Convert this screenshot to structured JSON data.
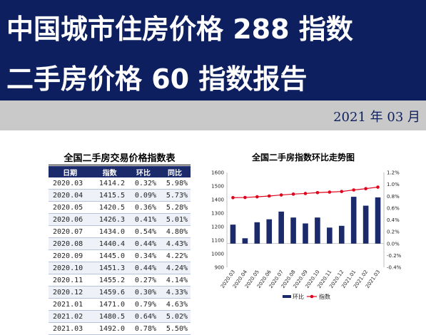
{
  "header": {
    "title_line1": "中国城市住房价格 288 指数",
    "title_line2": "二手房价格 60 指数报告",
    "date": "2021 年 03 月"
  },
  "table": {
    "title": "全国二手房交易价格指数表",
    "headers": [
      "日期",
      "指数",
      "环比",
      "同比"
    ],
    "rows": [
      [
        "2020.03",
        "1414.2",
        "0.32%",
        "5.98%"
      ],
      [
        "2020.04",
        "1415.5",
        "0.09%",
        "5.73%"
      ],
      [
        "2020.05",
        "1420.5",
        "0.36%",
        "5.28%"
      ],
      [
        "2020.06",
        "1426.3",
        "0.41%",
        "5.01%"
      ],
      [
        "2020.07",
        "1434.0",
        "0.54%",
        "4.80%"
      ],
      [
        "2020.08",
        "1440.4",
        "0.44%",
        "4.43%"
      ],
      [
        "2020.09",
        "1445.0",
        "0.34%",
        "4.22%"
      ],
      [
        "2020.10",
        "1451.3",
        "0.44%",
        "4.24%"
      ],
      [
        "2020.11",
        "1455.2",
        "0.27%",
        "4.14%"
      ],
      [
        "2020.12",
        "1459.6",
        "0.30%",
        "4.33%"
      ],
      [
        "2021.01",
        "1471.0",
        "0.79%",
        "4.63%"
      ],
      [
        "2021.02",
        "1480.5",
        "0.64%",
        "5.02%"
      ],
      [
        "2021.03",
        "1492.0",
        "0.78%",
        "5.50%"
      ]
    ]
  },
  "chart_data": {
    "type": "bar+line",
    "title": "全国二手房指数环比走势图",
    "categories": [
      "2020.03",
      "2020.04",
      "2020.05",
      "2020.06",
      "2020.07",
      "2020.08",
      "2020.09",
      "2020.10",
      "2020.11",
      "2020.12",
      "2021.01",
      "2021.02",
      "2021.03"
    ],
    "series": [
      {
        "name": "环比",
        "type": "bar",
        "axis": "right",
        "color": "#1b2a6b",
        "values": [
          0.32,
          0.09,
          0.36,
          0.41,
          0.54,
          0.44,
          0.34,
          0.44,
          0.27,
          0.3,
          0.79,
          0.64,
          0.78
        ]
      },
      {
        "name": "指数",
        "type": "line",
        "axis": "left",
        "color": "#e0001b",
        "values": [
          1414.2,
          1415.5,
          1420.5,
          1426.3,
          1434.0,
          1440.4,
          1445.0,
          1451.3,
          1455.2,
          1459.6,
          1471.0,
          1480.5,
          1492.0
        ]
      }
    ],
    "left_axis": {
      "min": 900,
      "max": 1600,
      "ticks": [
        "900",
        "1000",
        "1100",
        "1200",
        "1300",
        "1400",
        "1500",
        "1600"
      ]
    },
    "right_axis": {
      "min": -0.4,
      "max": 1.2,
      "ticks": [
        "-0.4%",
        "-0.2%",
        "0.0%",
        "0.2%",
        "0.4%",
        "0.6%",
        "0.8%",
        "1.0%",
        "1.2%"
      ]
    },
    "legend_position": "bottom"
  }
}
